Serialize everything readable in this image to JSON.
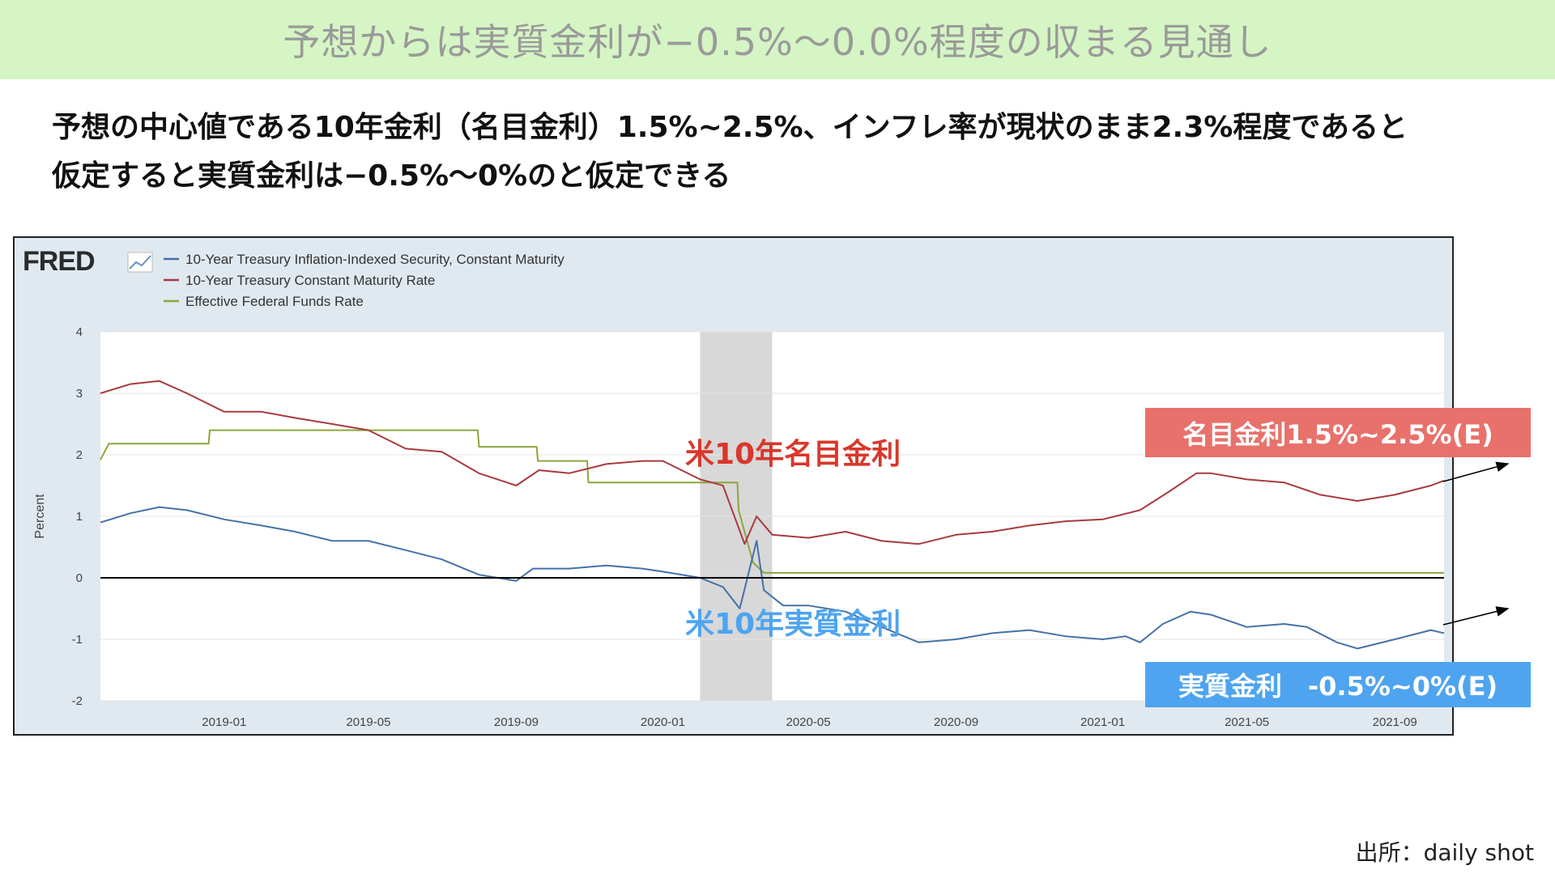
{
  "title": "予想からは実質金利が−0.5%〜0.0%程度の収まる見通し",
  "subtitle_lines": [
    "予想の中心値である10年金利（名目金利）1.5%~2.5%、インフレ率が現状のまま2.3%程度であると",
    "仮定すると実質金利は−0.5%〜0%のと仮定できる"
  ],
  "source": "出所：daily shot",
  "annotations": {
    "nominal_label": "米10年名目金利",
    "real_label": "米10年実質金利",
    "nominal_box": "名目金利1.5%~2.5%(E)",
    "real_box": "実質金利　-0.5%~0%(E)"
  },
  "colors": {
    "title_bg": "#d5f5c4",
    "nominal": "#a83a3f",
    "real": "#4572a7",
    "fed_funds": "#8aa63e",
    "nominal_box": "#e8716b",
    "real_box": "#4ea4ef",
    "nominal_text": "#d9372b",
    "real_text": "#4ea4ef",
    "recession_band": "#d8d8d8"
  },
  "chart_data": {
    "type": "line",
    "logo": "FRED",
    "ylabel": "Percent",
    "ylim": [
      -2,
      4
    ],
    "yticks": [
      -2,
      -1,
      0,
      1,
      2,
      3,
      4
    ],
    "xlim": [
      "2018-09-20",
      "2021-10-12"
    ],
    "xticks": [
      "2019-01",
      "2019-05",
      "2019-09",
      "2020-01",
      "2020-05",
      "2020-09",
      "2021-01",
      "2021-05",
      "2021-09"
    ],
    "recession_shading": [
      "2020-02-01",
      "2020-04-01"
    ],
    "zero_line": 0,
    "legend_position": "top-left",
    "series": [
      {
        "name": "10-Year Treasury Inflation-Indexed Security, Constant Maturity",
        "color": "#4572a7",
        "points": [
          [
            "2018-09-20",
            0.9
          ],
          [
            "2018-10-15",
            1.05
          ],
          [
            "2018-11-08",
            1.15
          ],
          [
            "2018-12-01",
            1.1
          ],
          [
            "2019-01-01",
            0.95
          ],
          [
            "2019-02-01",
            0.85
          ],
          [
            "2019-03-01",
            0.75
          ],
          [
            "2019-04-01",
            0.6
          ],
          [
            "2019-05-01",
            0.6
          ],
          [
            "2019-06-01",
            0.45
          ],
          [
            "2019-07-01",
            0.3
          ],
          [
            "2019-08-01",
            0.05
          ],
          [
            "2019-09-01",
            -0.05
          ],
          [
            "2019-09-15",
            0.15
          ],
          [
            "2019-10-15",
            0.15
          ],
          [
            "2019-11-15",
            0.2
          ],
          [
            "2019-12-15",
            0.15
          ],
          [
            "2020-01-01",
            0.1
          ],
          [
            "2020-02-01",
            0.0
          ],
          [
            "2020-02-20",
            -0.15
          ],
          [
            "2020-03-05",
            -0.5
          ],
          [
            "2020-03-19",
            0.6
          ],
          [
            "2020-03-25",
            -0.2
          ],
          [
            "2020-04-10",
            -0.45
          ],
          [
            "2020-05-01",
            -0.45
          ],
          [
            "2020-06-01",
            -0.55
          ],
          [
            "2020-07-01",
            -0.8
          ],
          [
            "2020-08-01",
            -1.05
          ],
          [
            "2020-09-01",
            -1.0
          ],
          [
            "2020-10-01",
            -0.9
          ],
          [
            "2020-11-01",
            -0.85
          ],
          [
            "2020-12-01",
            -0.95
          ],
          [
            "2021-01-01",
            -1.0
          ],
          [
            "2021-01-20",
            -0.95
          ],
          [
            "2021-02-01",
            -1.05
          ],
          [
            "2021-02-20",
            -0.75
          ],
          [
            "2021-03-15",
            -0.55
          ],
          [
            "2021-04-01",
            -0.6
          ],
          [
            "2021-05-01",
            -0.8
          ],
          [
            "2021-06-01",
            -0.75
          ],
          [
            "2021-06-20",
            -0.8
          ],
          [
            "2021-07-15",
            -1.05
          ],
          [
            "2021-08-01",
            -1.15
          ],
          [
            "2021-09-01",
            -1.0
          ],
          [
            "2021-10-01",
            -0.85
          ],
          [
            "2021-10-12",
            -0.9
          ]
        ]
      },
      {
        "name": "10-Year Treasury Constant Maturity Rate",
        "color": "#a83a3f",
        "points": [
          [
            "2018-09-20",
            3.0
          ],
          [
            "2018-10-15",
            3.15
          ],
          [
            "2018-11-08",
            3.2
          ],
          [
            "2018-12-01",
            3.0
          ],
          [
            "2019-01-01",
            2.7
          ],
          [
            "2019-02-01",
            2.7
          ],
          [
            "2019-03-01",
            2.6
          ],
          [
            "2019-04-01",
            2.5
          ],
          [
            "2019-05-01",
            2.4
          ],
          [
            "2019-06-01",
            2.1
          ],
          [
            "2019-07-01",
            2.05
          ],
          [
            "2019-08-01",
            1.7
          ],
          [
            "2019-09-01",
            1.5
          ],
          [
            "2019-09-20",
            1.75
          ],
          [
            "2019-10-15",
            1.7
          ],
          [
            "2019-11-15",
            1.85
          ],
          [
            "2019-12-15",
            1.9
          ],
          [
            "2020-01-01",
            1.9
          ],
          [
            "2020-02-01",
            1.6
          ],
          [
            "2020-02-20",
            1.5
          ],
          [
            "2020-03-09",
            0.55
          ],
          [
            "2020-03-19",
            1.0
          ],
          [
            "2020-04-01",
            0.7
          ],
          [
            "2020-05-01",
            0.65
          ],
          [
            "2020-06-01",
            0.75
          ],
          [
            "2020-07-01",
            0.6
          ],
          [
            "2020-08-01",
            0.55
          ],
          [
            "2020-09-01",
            0.7
          ],
          [
            "2020-10-01",
            0.75
          ],
          [
            "2020-11-01",
            0.85
          ],
          [
            "2020-12-01",
            0.92
          ],
          [
            "2021-01-01",
            0.95
          ],
          [
            "2021-02-01",
            1.1
          ],
          [
            "2021-02-25",
            1.4
          ],
          [
            "2021-03-20",
            1.7
          ],
          [
            "2021-04-01",
            1.7
          ],
          [
            "2021-05-01",
            1.6
          ],
          [
            "2021-06-01",
            1.55
          ],
          [
            "2021-07-01",
            1.35
          ],
          [
            "2021-08-01",
            1.25
          ],
          [
            "2021-09-01",
            1.35
          ],
          [
            "2021-10-01",
            1.5
          ],
          [
            "2021-10-12",
            1.58
          ]
        ]
      },
      {
        "name": "Effective Federal Funds Rate",
        "color": "#8aa63e",
        "points": [
          [
            "2018-09-20",
            1.92
          ],
          [
            "2018-09-27",
            2.18
          ],
          [
            "2018-12-19",
            2.18
          ],
          [
            "2018-12-20",
            2.4
          ],
          [
            "2019-07-31",
            2.4
          ],
          [
            "2019-08-01",
            2.13
          ],
          [
            "2019-09-18",
            2.13
          ],
          [
            "2019-09-19",
            1.9
          ],
          [
            "2019-10-30",
            1.9
          ],
          [
            "2019-10-31",
            1.55
          ],
          [
            "2020-03-03",
            1.55
          ],
          [
            "2020-03-04",
            1.1
          ],
          [
            "2020-03-16",
            0.25
          ],
          [
            "2020-03-25",
            0.08
          ],
          [
            "2021-10-12",
            0.08
          ]
        ]
      }
    ]
  }
}
